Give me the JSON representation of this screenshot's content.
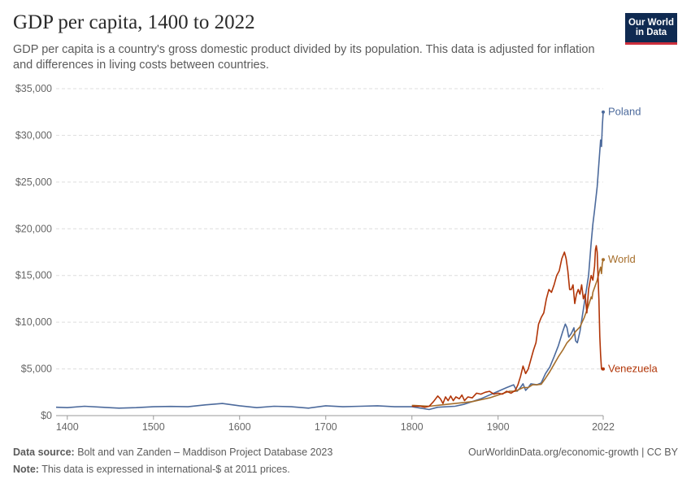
{
  "header": {
    "title": "GDP per capita, 1400 to 2022",
    "subtitle": "GDP per capita is a country's gross domestic product divided by its population. This data is adjusted for inflation and differences in living costs between countries.",
    "logo_line1": "Our World",
    "logo_line2": "in Data"
  },
  "footer": {
    "source_label": "Data source:",
    "source_text": "Bolt and van Zanden – Maddison Project Database 2023",
    "note_label": "Note:",
    "note_text": "This data is expressed in international-$ at 2011 prices.",
    "link_text": "OurWorldinData.org/economic-growth | CC BY"
  },
  "chart_data": {
    "type": "line",
    "x_ticks": [
      "1400",
      "1500",
      "1600",
      "1700",
      "1800",
      "1900",
      "2022"
    ],
    "y_ticks": [
      "$0",
      "$5,000",
      "$10,000",
      "$15,000",
      "$20,000",
      "$25,000",
      "$30,000",
      "$35,000"
    ],
    "xlim": [
      1387,
      2022
    ],
    "ylim": [
      0,
      35000
    ],
    "grid": "horizontal dashed",
    "legend": "inline labels at line ends",
    "series": [
      {
        "name": "Poland",
        "color": "#4c6a9c",
        "points": [
          [
            1387,
            900
          ],
          [
            1400,
            850
          ],
          [
            1420,
            1000
          ],
          [
            1440,
            900
          ],
          [
            1460,
            800
          ],
          [
            1480,
            850
          ],
          [
            1500,
            950
          ],
          [
            1520,
            980
          ],
          [
            1540,
            950
          ],
          [
            1560,
            1150
          ],
          [
            1580,
            1300
          ],
          [
            1600,
            1050
          ],
          [
            1620,
            850
          ],
          [
            1640,
            1000
          ],
          [
            1660,
            950
          ],
          [
            1680,
            800
          ],
          [
            1700,
            1050
          ],
          [
            1720,
            950
          ],
          [
            1740,
            1000
          ],
          [
            1760,
            1050
          ],
          [
            1780,
            950
          ],
          [
            1800,
            950
          ],
          [
            1820,
            650
          ],
          [
            1830,
            900
          ],
          [
            1850,
            1000
          ],
          [
            1860,
            1200
          ],
          [
            1870,
            1500
          ],
          [
            1880,
            1800
          ],
          [
            1890,
            2200
          ],
          [
            1900,
            2600
          ],
          [
            1910,
            3000
          ],
          [
            1918,
            3300
          ],
          [
            1922,
            2600
          ],
          [
            1925,
            2900
          ],
          [
            1929,
            3400
          ],
          [
            1932,
            2700
          ],
          [
            1935,
            3000
          ],
          [
            1938,
            3400
          ],
          [
            1945,
            3300
          ],
          [
            1950,
            3500
          ],
          [
            1955,
            4500
          ],
          [
            1960,
            5200
          ],
          [
            1965,
            6300
          ],
          [
            1970,
            7500
          ],
          [
            1975,
            9000
          ],
          [
            1978,
            9800
          ],
          [
            1980,
            9400
          ],
          [
            1982,
            8400
          ],
          [
            1985,
            8800
          ],
          [
            1988,
            9400
          ],
          [
            1990,
            8000
          ],
          [
            1992,
            7800
          ],
          [
            1995,
            9000
          ],
          [
            2000,
            12000
          ],
          [
            2005,
            15000
          ],
          [
            2008,
            18500
          ],
          [
            2010,
            20500
          ],
          [
            2012,
            22000
          ],
          [
            2015,
            24500
          ],
          [
            2017,
            27000
          ],
          [
            2019,
            29500
          ],
          [
            2020,
            28800
          ],
          [
            2021,
            31000
          ],
          [
            2022,
            32500
          ]
        ]
      },
      {
        "name": "World",
        "color": "#a66e2b",
        "points": [
          [
            1800,
            1100
          ],
          [
            1820,
            1000
          ],
          [
            1840,
            1200
          ],
          [
            1850,
            1300
          ],
          [
            1860,
            1400
          ],
          [
            1870,
            1500
          ],
          [
            1880,
            1700
          ],
          [
            1890,
            1900
          ],
          [
            1900,
            2200
          ],
          [
            1913,
            2600
          ],
          [
            1920,
            2600
          ],
          [
            1929,
            3000
          ],
          [
            1935,
            3000
          ],
          [
            1940,
            3300
          ],
          [
            1945,
            3300
          ],
          [
            1950,
            3350
          ],
          [
            1955,
            4000
          ],
          [
            1960,
            4700
          ],
          [
            1965,
            5500
          ],
          [
            1970,
            6300
          ],
          [
            1975,
            7000
          ],
          [
            1980,
            7800
          ],
          [
            1985,
            8300
          ],
          [
            1990,
            9000
          ],
          [
            1995,
            9500
          ],
          [
            2000,
            10500
          ],
          [
            2005,
            11800
          ],
          [
            2008,
            12700
          ],
          [
            2009,
            12500
          ],
          [
            2010,
            13200
          ],
          [
            2015,
            14500
          ],
          [
            2018,
            15600
          ],
          [
            2019,
            15900
          ],
          [
            2020,
            15200
          ],
          [
            2021,
            16300
          ],
          [
            2022,
            16700
          ]
        ]
      },
      {
        "name": "Venezuela",
        "color": "#b13507",
        "points": [
          [
            1800,
            1000
          ],
          [
            1810,
            1000
          ],
          [
            1815,
            900
          ],
          [
            1820,
            1000
          ],
          [
            1825,
            1500
          ],
          [
            1830,
            2100
          ],
          [
            1833,
            1800
          ],
          [
            1836,
            1300
          ],
          [
            1839,
            2000
          ],
          [
            1842,
            1600
          ],
          [
            1845,
            2100
          ],
          [
            1848,
            1600
          ],
          [
            1851,
            2000
          ],
          [
            1855,
            1800
          ],
          [
            1858,
            2200
          ],
          [
            1861,
            1600
          ],
          [
            1865,
            2000
          ],
          [
            1870,
            1900
          ],
          [
            1875,
            2400
          ],
          [
            1880,
            2300
          ],
          [
            1885,
            2500
          ],
          [
            1890,
            2600
          ],
          [
            1895,
            2300
          ],
          [
            1900,
            2400
          ],
          [
            1905,
            2300
          ],
          [
            1910,
            2600
          ],
          [
            1915,
            2400
          ],
          [
            1920,
            2700
          ],
          [
            1923,
            3300
          ],
          [
            1926,
            4200
          ],
          [
            1929,
            5300
          ],
          [
            1932,
            4500
          ],
          [
            1935,
            5000
          ],
          [
            1938,
            6000
          ],
          [
            1941,
            7000
          ],
          [
            1944,
            7800
          ],
          [
            1947,
            9800
          ],
          [
            1950,
            10500
          ],
          [
            1953,
            11000
          ],
          [
            1956,
            12500
          ],
          [
            1959,
            13500
          ],
          [
            1962,
            13200
          ],
          [
            1965,
            14000
          ],
          [
            1968,
            15000
          ],
          [
            1971,
            15500
          ],
          [
            1974,
            16800
          ],
          [
            1977,
            17500
          ],
          [
            1979,
            16800
          ],
          [
            1981,
            15500
          ],
          [
            1983,
            13500
          ],
          [
            1985,
            13500
          ],
          [
            1987,
            14000
          ],
          [
            1989,
            12000
          ],
          [
            1991,
            13000
          ],
          [
            1993,
            13500
          ],
          [
            1995,
            13000
          ],
          [
            1997,
            14000
          ],
          [
            1999,
            12500
          ],
          [
            2001,
            13000
          ],
          [
            2003,
            11000
          ],
          [
            2005,
            13500
          ],
          [
            2008,
            15000
          ],
          [
            2010,
            14500
          ],
          [
            2012,
            16000
          ],
          [
            2013,
            17800
          ],
          [
            2014,
            18200
          ],
          [
            2015,
            17500
          ],
          [
            2016,
            15000
          ],
          [
            2017,
            12500
          ],
          [
            2018,
            8500
          ],
          [
            2019,
            6500
          ],
          [
            2020,
            5000
          ],
          [
            2021,
            4900
          ],
          [
            2022,
            5000
          ]
        ]
      }
    ]
  }
}
